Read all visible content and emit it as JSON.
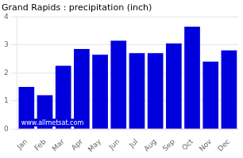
{
  "chart_data": {
    "type": "bar",
    "title": "Grand Rapids : precipitation (inch)",
    "categories": [
      "Jan",
      "Feb",
      "Mar",
      "Apr",
      "May",
      "Jun",
      "Jul",
      "Aug",
      "Sep",
      "Oct",
      "Nov",
      "Dec"
    ],
    "values": [
      1.5,
      1.2,
      2.25,
      2.85,
      2.65,
      3.15,
      2.7,
      2.7,
      3.05,
      3.65,
      2.4,
      2.8
    ],
    "color": "#0000DD",
    "ylim": [
      0,
      4
    ],
    "yticks": [
      0,
      1,
      2,
      3,
      4
    ],
    "grid": true,
    "annotation": "www.allmetsat.com"
  }
}
